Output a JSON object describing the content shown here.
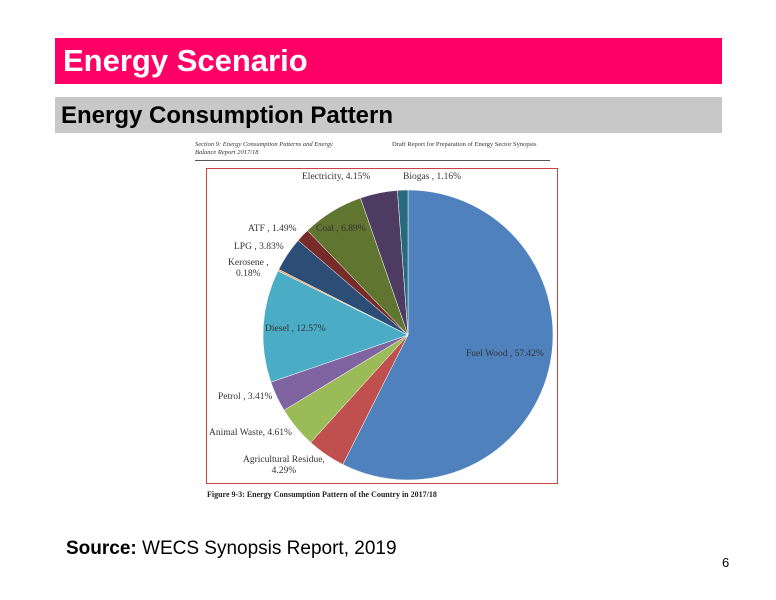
{
  "slide": {
    "title": "Energy Scenario",
    "subtitle": "Energy Consumption Pattern",
    "source_label": "Source:",
    "source_text": "WECS Synopsis Report, 2019",
    "page_number": 6,
    "figure_header_left": "Section 9: Energy Consumption Patterns and Energy Balance Report 2017/18",
    "figure_header_right": "Draft Report for Preparation of Energy Sector Synopsis",
    "figure_caption": "Figure 9-3: Energy Consumption Pattern of the Country in 2017/18"
  },
  "chart_data": {
    "type": "pie",
    "labels": [
      "Fuel Wood , 57.42%",
      "Agricultural Residue,\n4.29%",
      "Animal Waste, 4.61%",
      "Petrol , 3.41%",
      "Diesel , 12.57%",
      "Kerosene ,\n0.18%",
      "LPG , 3.83%",
      "ATF , 1.49%",
      "Coal , 6.89%",
      "Electricity, 4.15%",
      "Biogas , 1.16%"
    ],
    "values": [
      57.42,
      4.29,
      4.61,
      3.41,
      12.57,
      0.18,
      3.83,
      1.49,
      6.89,
      4.15,
      1.16
    ],
    "colors": [
      "#4f81bd",
      "#c0504d",
      "#9bbb59",
      "#8064a2",
      "#4bacc6",
      "#f79646",
      "#2c4d75",
      "#772c2a",
      "#5f7530",
      "#4d3b62",
      "#276a7c"
    ]
  }
}
